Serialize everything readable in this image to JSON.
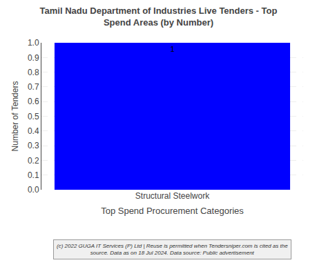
{
  "chart_data": {
    "type": "bar",
    "title": "Tamil Nadu Department of Industries Live Tenders - Top\nSpend Areas (by Number)",
    "categories": [
      "Structural Steelwork"
    ],
    "values": [
      1
    ],
    "color": "#0000ff",
    "ylabel": "Number of Tenders",
    "xlabel": "Top Spend Procurement Categories",
    "ylim": [
      0,
      1.0
    ],
    "yticks": [
      {
        "value": 0,
        "label": "0.0"
      },
      0.1,
      0.2,
      0.3,
      0.4,
      0.5,
      0.6,
      0.7,
      0.8,
      0.9,
      {
        "value": 1,
        "label": "1.0"
      }
    ],
    "grid": true,
    "data_labels": true,
    "footer": "(c) 2022 GUGA IT Services (P) Ltd | Reuse is permitted when Tendersniper.com is cited as the\nsource. Data as on 18 Jul 2024. Data source: Public advertisement"
  }
}
